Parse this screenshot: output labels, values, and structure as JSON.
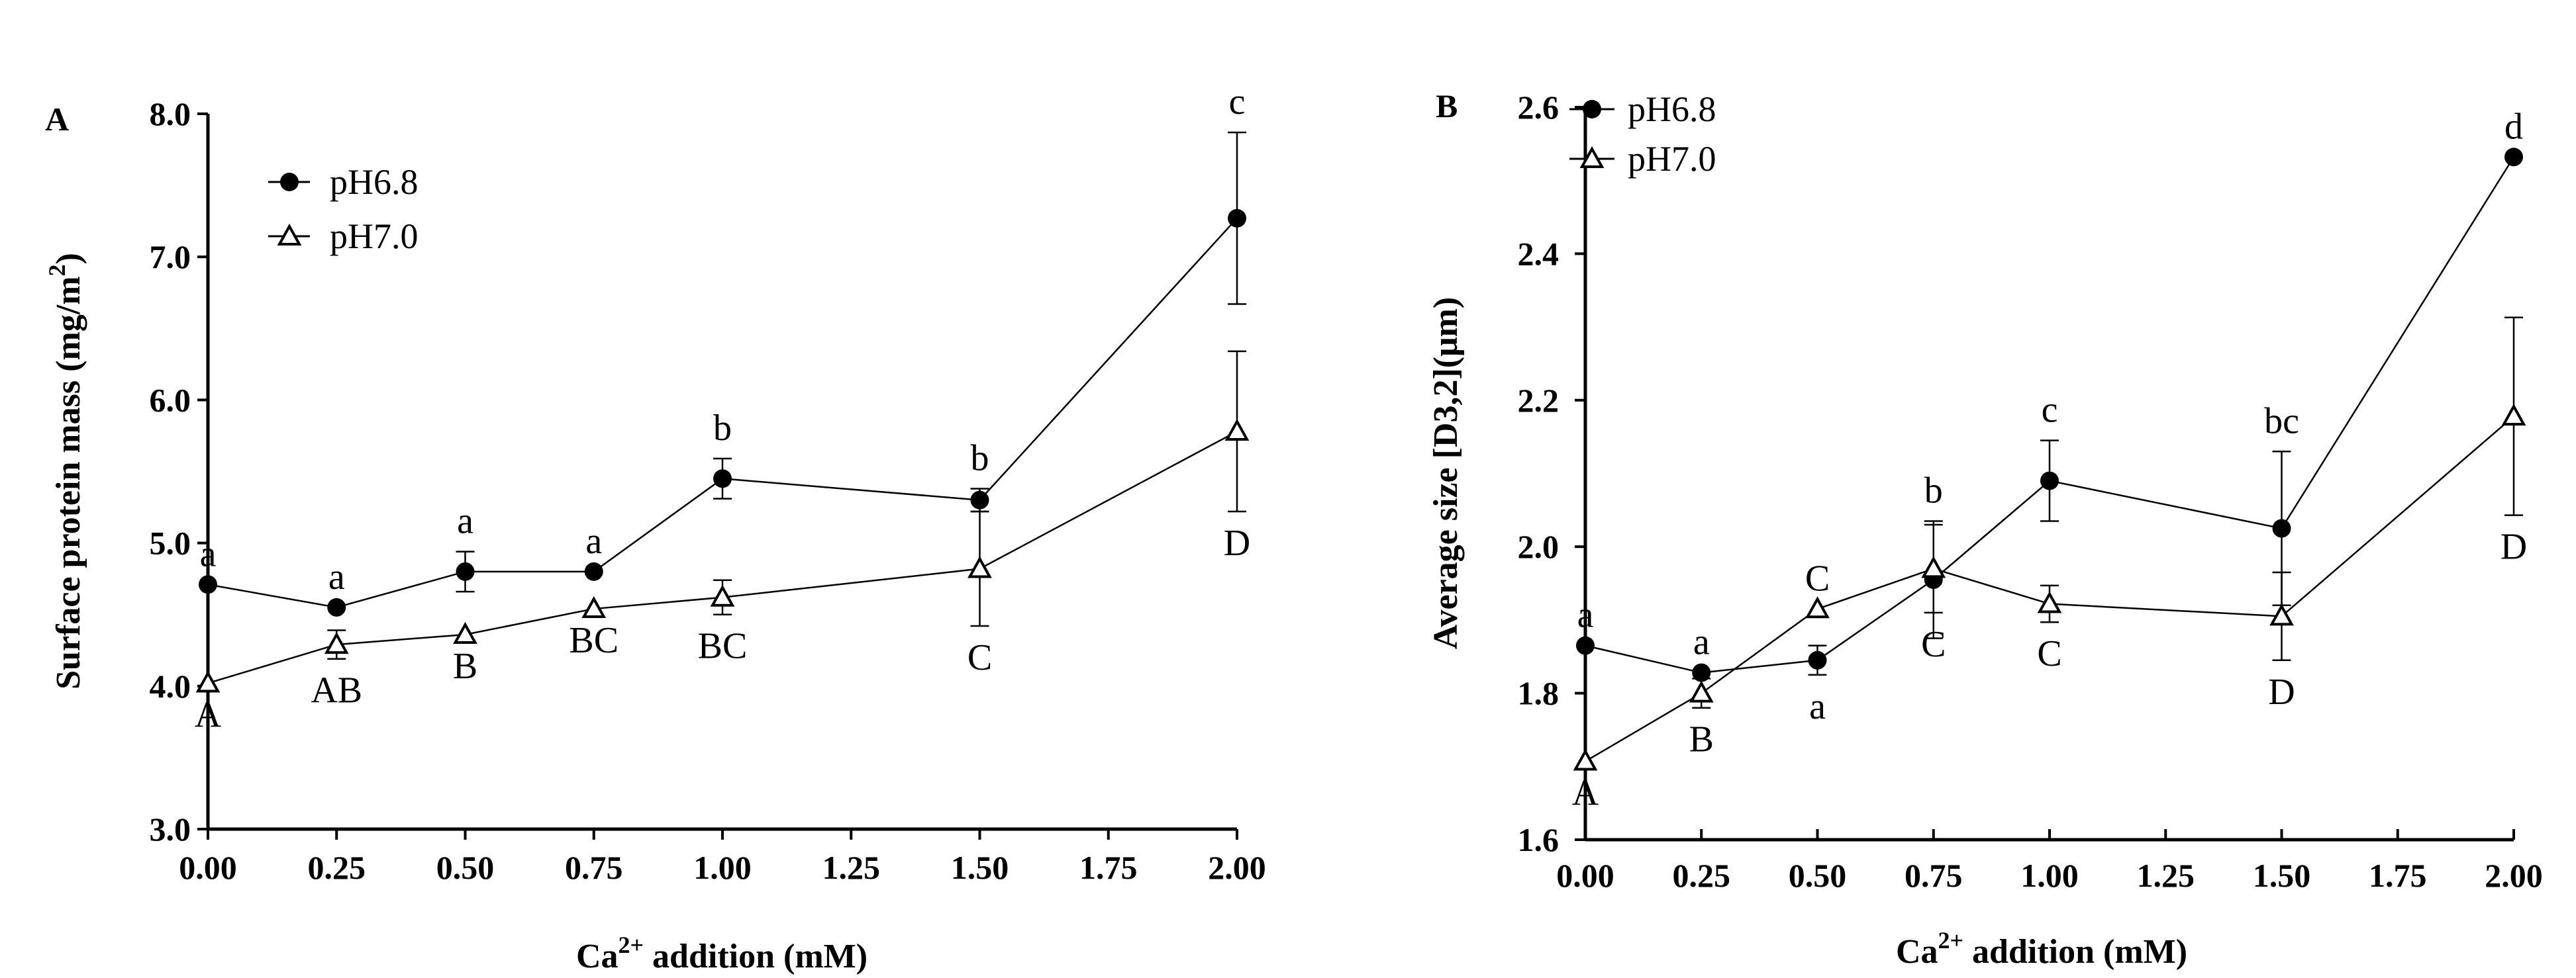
{
  "chart_data": [
    {
      "type": "line",
      "panel": "A",
      "xlabel_main": "Ca",
      "xlabel_sup": "2+",
      "xlabel_rest": " addition (mM)",
      "ylabel_main": "Surface protein mass (mg/m",
      "ylabel_sup": "2",
      "ylabel_end": ")",
      "xlim": [
        0,
        2
      ],
      "ylim": [
        3,
        8
      ],
      "xticks": [
        0,
        0.25,
        0.5,
        0.75,
        1.0,
        1.25,
        1.5,
        1.75,
        2.0
      ],
      "xtick_labels": [
        "0.00",
        "0.25",
        "0.50",
        "0.75",
        "1.00",
        "1.25",
        "1.50",
        "1.75",
        "2.00"
      ],
      "yticks": [
        3,
        4,
        5,
        6,
        7,
        8
      ],
      "ytick_labels": [
        "3.0",
        "4.0",
        "5.0",
        "6.0",
        "7.0",
        "8.0"
      ],
      "legend_position": "top-left",
      "series": [
        {
          "name": "pH6.8",
          "marker": "filled-circle",
          "x": [
            0,
            0.25,
            0.5,
            0.75,
            1.0,
            1.5,
            2.0
          ],
          "y": [
            4.71,
            4.55,
            4.8,
            4.8,
            5.45,
            5.3,
            7.27
          ],
          "err": [
            0,
            0,
            0.14,
            0,
            0.14,
            0.08,
            0.6
          ],
          "sig": [
            "a",
            "a",
            "a",
            "a",
            "b",
            "b",
            "c"
          ],
          "sig_pos": "above"
        },
        {
          "name": "pH7.0",
          "marker": "open-triangle",
          "x": [
            0,
            0.25,
            0.5,
            0.75,
            1.0,
            1.5,
            2.0
          ],
          "y": [
            4.02,
            4.29,
            4.36,
            4.54,
            4.62,
            4.82,
            5.78
          ],
          "err": [
            0,
            0.1,
            0,
            0,
            0.12,
            0.4,
            0.56
          ],
          "sig": [
            "A",
            "AB",
            "B",
            "BC",
            "BC",
            "C",
            "D"
          ],
          "sig_pos": "below"
        }
      ]
    },
    {
      "type": "line",
      "panel": "B",
      "xlabel_main": "Ca",
      "xlabel_sup": "2+",
      "xlabel_rest": " addition (mM)",
      "ylabel": "Average size [D3,2](μm)",
      "xlim": [
        0,
        2
      ],
      "ylim": [
        1.6,
        2.6
      ],
      "xticks": [
        0,
        0.25,
        0.5,
        0.75,
        1.0,
        1.25,
        1.5,
        1.75,
        2.0
      ],
      "xtick_labels": [
        "0.00",
        "0.25",
        "0.50",
        "0.75",
        "1.00",
        "1.25",
        "1.50",
        "1.75",
        "2.00"
      ],
      "yticks": [
        1.6,
        1.8,
        2.0,
        2.2,
        2.4,
        2.6
      ],
      "ytick_labels": [
        "1.6",
        "1.8",
        "2.0",
        "2.2",
        "2.4",
        "2.6"
      ],
      "legend_position": "top-left",
      "series": [
        {
          "name": "pH6.8",
          "marker": "filled-circle",
          "x": [
            0,
            0.25,
            0.5,
            0.75,
            1.0,
            1.5,
            2.0
          ],
          "y": [
            1.865,
            1.828,
            1.845,
            1.955,
            2.09,
            2.025,
            2.532
          ],
          "err": [
            0,
            0,
            0.02,
            0.08,
            0.055,
            0.105,
            0
          ],
          "sig": [
            "a",
            "a",
            "a",
            "b",
            "c",
            "bc",
            "d"
          ],
          "sig_pos": [
            "above",
            "above",
            "below",
            "above",
            "above",
            "above",
            "above"
          ]
        },
        {
          "name": "pH7.0",
          "marker": "open-triangle",
          "x": [
            0,
            0.25,
            0.5,
            0.75,
            1.0,
            1.5,
            2.0
          ],
          "y": [
            1.707,
            1.8,
            1.915,
            1.97,
            1.922,
            1.905,
            2.178
          ],
          "err": [
            0,
            0.02,
            0,
            0.06,
            0.025,
            0.06,
            0.135
          ],
          "sig": [
            "A",
            "B",
            "C",
            "C",
            "C",
            "D",
            "D"
          ],
          "sig_pos": [
            "below",
            "below",
            "above",
            "below",
            "below",
            "below",
            "below"
          ]
        }
      ]
    }
  ]
}
